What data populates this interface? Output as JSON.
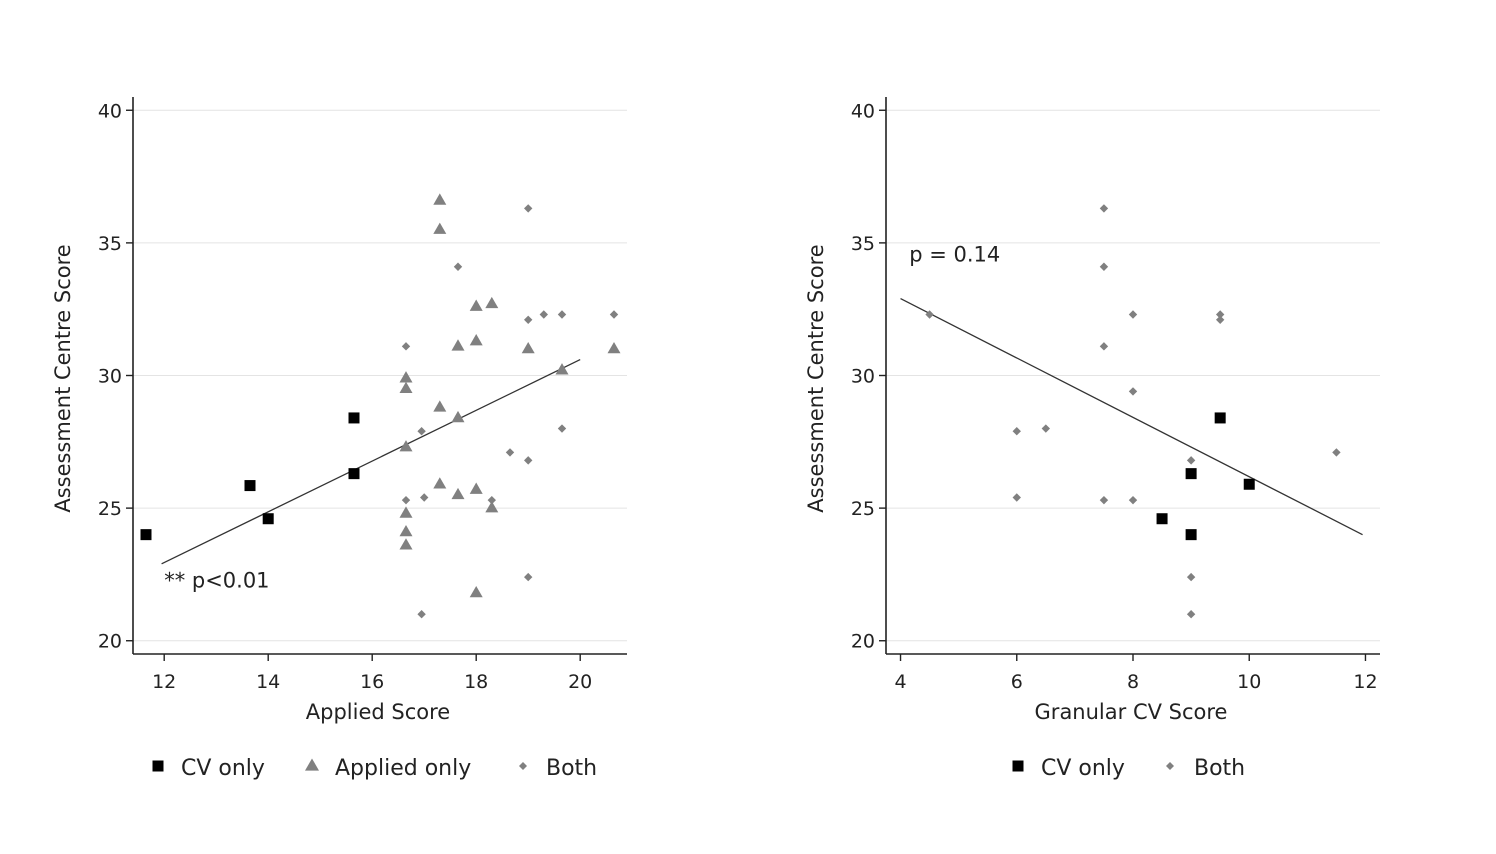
{
  "chart_data": [
    {
      "type": "scatter",
      "title": "",
      "xlabel": "Applied Score",
      "ylabel": "Assessment Centre Score",
      "xlim": [
        11.4,
        20.9
      ],
      "ylim": [
        19.5,
        40.5
      ],
      "xticks": [
        12,
        14,
        16,
        18,
        20
      ],
      "yticks": [
        20,
        25,
        30,
        35,
        40
      ],
      "grid": "horizontal",
      "annotation": "** p<0.01",
      "annotation_pos": [
        12,
        22
      ],
      "trendline": [
        [
          11.95,
          22.9
        ],
        [
          20.0,
          30.6
        ]
      ],
      "legend_position": "bottom",
      "series": [
        {
          "name": "CV only",
          "marker": "square",
          "color": "#000000",
          "x": [
            11.65,
            13.65,
            14.0,
            15.65,
            15.65
          ],
          "y": [
            24.0,
            25.85,
            24.6,
            28.4,
            26.3
          ]
        },
        {
          "name": "Applied only",
          "marker": "triangle",
          "color": "#808080",
          "x": [
            17.3,
            17.3,
            18.0,
            18.3,
            17.65,
            18.0,
            16.65,
            16.65,
            17.3,
            17.65,
            16.65,
            17.3,
            17.65,
            18.0,
            18.3,
            16.65,
            16.65,
            16.65,
            18.0,
            19.0,
            19.65,
            20.65
          ],
          "y": [
            36.6,
            35.5,
            32.6,
            32.7,
            31.1,
            31.3,
            29.9,
            29.5,
            28.8,
            28.4,
            27.3,
            25.9,
            25.5,
            25.7,
            25.0,
            24.8,
            24.1,
            23.6,
            21.8,
            31.0,
            30.2,
            31.0
          ]
        },
        {
          "name": "Both",
          "marker": "diamond",
          "color": "#808080",
          "x": [
            19.0,
            17.65,
            19.0,
            19.3,
            19.65,
            20.65,
            16.65,
            16.95,
            18.65,
            19.0,
            19.65,
            16.65,
            17.0,
            18.3,
            19.0,
            16.95
          ],
          "y": [
            36.3,
            34.1,
            32.1,
            32.3,
            32.3,
            32.3,
            31.1,
            27.9,
            27.1,
            26.8,
            28.0,
            25.3,
            25.4,
            25.3,
            22.4,
            21.0
          ]
        }
      ]
    },
    {
      "type": "scatter",
      "title": "",
      "xlabel": "Granular CV Score",
      "ylabel": "Assessment Centre Score",
      "xlim": [
        3.75,
        12.25
      ],
      "ylim": [
        19.5,
        40.5
      ],
      "xticks": [
        4,
        6,
        8,
        10,
        12
      ],
      "yticks": [
        20,
        25,
        30,
        35,
        40
      ],
      "grid": "horizontal",
      "annotation": "p = 0.14",
      "annotation_pos": [
        4.15,
        34.3
      ],
      "trendline": [
        [
          4.0,
          32.9
        ],
        [
          11.95,
          24.0
        ]
      ],
      "legend_position": "bottom",
      "series": [
        {
          "name": "CV only",
          "marker": "square",
          "color": "#000000",
          "x": [
            9.5,
            9.0,
            10.0,
            8.5,
            9.0
          ],
          "y": [
            28.4,
            26.3,
            25.9,
            24.6,
            24.0
          ]
        },
        {
          "name": "Both",
          "marker": "diamond",
          "color": "#808080",
          "x": [
            7.5,
            7.5,
            8.0,
            9.5,
            9.5,
            4.5,
            7.5,
            8.0,
            6.0,
            6.5,
            9.0,
            11.5,
            6.0,
            7.5,
            8.0,
            9.0,
            9.0
          ],
          "y": [
            36.3,
            34.1,
            32.3,
            32.3,
            32.1,
            32.3,
            31.1,
            29.4,
            27.9,
            28.0,
            26.8,
            27.1,
            25.4,
            25.3,
            25.3,
            22.4,
            21.0
          ]
        }
      ]
    }
  ]
}
